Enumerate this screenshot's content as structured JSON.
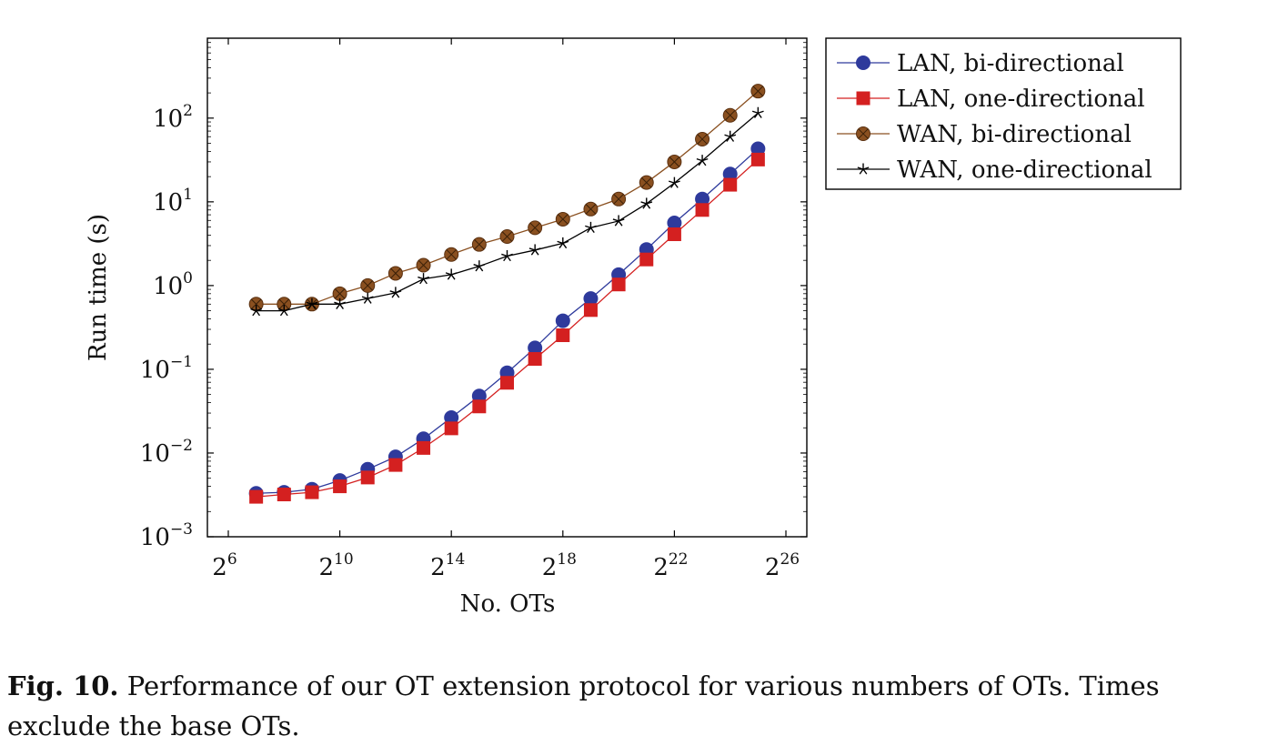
{
  "chart_data": {
    "type": "line",
    "xlabel": "No. OTs",
    "ylabel": "Run time (s)",
    "x_scale": "log2",
    "y_scale": "log10",
    "xlim_exp": [
      5.25,
      26.75
    ],
    "ylim": [
      0.001,
      900
    ],
    "x_ticks": [
      {
        "base": "2",
        "exp": "6",
        "value": 64
      },
      {
        "base": "2",
        "exp": "10",
        "value": 1024
      },
      {
        "base": "2",
        "exp": "14",
        "value": 16384
      },
      {
        "base": "2",
        "exp": "18",
        "value": 262144
      },
      {
        "base": "2",
        "exp": "22",
        "value": 4194304
      },
      {
        "base": "2",
        "exp": "26",
        "value": 67108864
      }
    ],
    "y_ticks": [
      {
        "base": "10",
        "exp": "−3",
        "value": 0.001
      },
      {
        "base": "10",
        "exp": "−2",
        "value": 0.01
      },
      {
        "base": "10",
        "exp": "−1",
        "value": 0.1
      },
      {
        "base": "10",
        "exp": "0",
        "value": 1
      },
      {
        "base": "10",
        "exp": "1",
        "value": 10
      },
      {
        "base": "10",
        "exp": "2",
        "value": 100
      }
    ],
    "x": [
      128,
      256,
      512,
      1024,
      2048,
      4096,
      8192,
      16384,
      32768,
      65536,
      131072,
      262144,
      524288,
      1048576,
      2097152,
      4194304,
      8388608,
      16777216,
      33554432
    ],
    "series": [
      {
        "name": "LAN, bi-directional",
        "color": "#2e3a9c",
        "marker": "circle",
        "values": [
          0.0033,
          0.0034,
          0.0037,
          0.0047,
          0.0064,
          0.009,
          0.0148,
          0.0265,
          0.048,
          0.091,
          0.18,
          0.38,
          0.7,
          1.35,
          2.7,
          5.6,
          10.8,
          21.5,
          43
        ]
      },
      {
        "name": "LAN, one-directional",
        "color": "#d42020",
        "marker": "square",
        "values": [
          0.003,
          0.0032,
          0.0034,
          0.004,
          0.0051,
          0.0072,
          0.0115,
          0.0197,
          0.036,
          0.069,
          0.133,
          0.255,
          0.51,
          1.03,
          2.05,
          4.1,
          8.0,
          16.0,
          32
        ]
      },
      {
        "name": "WAN, bi-directional",
        "color": "#8a5020",
        "marker": "otimes",
        "values": [
          0.6,
          0.6,
          0.6,
          0.8,
          1.0,
          1.4,
          1.75,
          2.35,
          3.1,
          3.85,
          4.9,
          6.2,
          8.2,
          10.8,
          17,
          30,
          56,
          108,
          210
        ]
      },
      {
        "name": "WAN, one-directional",
        "color": "#000000",
        "marker": "star",
        "values": [
          0.5,
          0.5,
          0.6,
          0.6,
          0.7,
          0.82,
          1.2,
          1.35,
          1.7,
          2.25,
          2.65,
          3.2,
          4.9,
          5.9,
          9.5,
          16.8,
          31,
          60,
          115
        ]
      }
    ],
    "legend_position": "outside-right-top"
  },
  "caption": {
    "label": "Fig. 10.",
    "text": " Performance of our OT extension protocol for various numbers of OTs. Times exclude the base OTs."
  }
}
